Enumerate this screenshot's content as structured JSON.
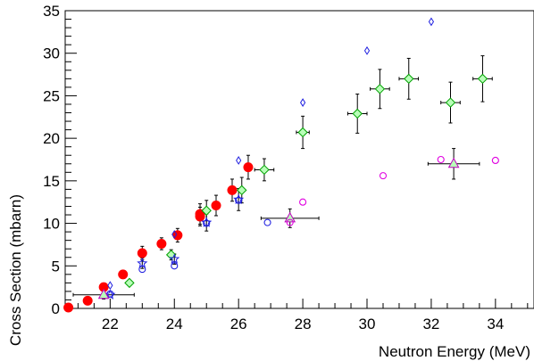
{
  "chart_data": {
    "type": "scatter",
    "xlabel": "Neutron Energy (MeV)",
    "ylabel": "Cross Section (mbarn)",
    "xlim": [
      20.6,
      35.2
    ],
    "ylim": [
      0,
      35
    ],
    "xticks": [
      "22",
      "24",
      "26",
      "28",
      "30",
      "32",
      "34"
    ],
    "yticks": [
      "0",
      "5",
      "10",
      "15",
      "20",
      "25",
      "30",
      "35"
    ],
    "grid": false,
    "series": [
      {
        "marker": "filled-circle",
        "color": "#ff0000",
        "points": [
          {
            "x": 20.7,
            "y": 0.1
          },
          {
            "x": 21.3,
            "y": 0.9
          },
          {
            "x": 21.8,
            "y": 2.5,
            "yerr": 0.4
          },
          {
            "x": 22.4,
            "y": 4.0
          },
          {
            "x": 23.0,
            "y": 6.5,
            "yerr": 0.8
          },
          {
            "x": 23.6,
            "y": 7.6,
            "yerr": 0.7
          },
          {
            "x": 24.1,
            "y": 8.6,
            "yerr": 0.8
          },
          {
            "x": 24.8,
            "y": 10.8,
            "yerr": 1.1
          },
          {
            "x": 24.8,
            "y": 11.1,
            "yerr": 1.2
          },
          {
            "x": 25.3,
            "y": 12.1,
            "yerr": 1.2
          },
          {
            "x": 25.8,
            "y": 13.9,
            "yerr": 1.3
          },
          {
            "x": 26.3,
            "y": 16.6,
            "yerr": 1.4
          }
        ]
      },
      {
        "marker": "open-diamond",
        "color": "#00a000",
        "fill": "#b8ffb8",
        "points": [
          {
            "x": 22.6,
            "y": 3.0
          },
          {
            "x": 23.9,
            "y": 6.3,
            "yerr": 0.6
          },
          {
            "x": 25.0,
            "y": 11.5,
            "yerr": 1.2
          },
          {
            "x": 26.1,
            "y": 13.9,
            "yerr": 1.5
          },
          {
            "x": 26.8,
            "y": 16.3,
            "yerr": 1.3,
            "xerr": 0.3
          },
          {
            "x": 28.0,
            "y": 20.7,
            "yerr": 1.9,
            "xerr": 0.2
          },
          {
            "x": 29.7,
            "y": 22.9,
            "yerr": 2.3,
            "xerr": 0.3
          },
          {
            "x": 30.4,
            "y": 25.8,
            "yerr": 2.3,
            "xerr": 0.3
          },
          {
            "x": 31.3,
            "y": 27.0,
            "yerr": 2.4,
            "xerr": 0.3
          },
          {
            "x": 32.6,
            "y": 24.2,
            "yerr": 2.4,
            "xerr": 0.3
          },
          {
            "x": 33.6,
            "y": 27.0,
            "yerr": 2.7,
            "xerr": 0.3
          }
        ]
      },
      {
        "marker": "open-circle",
        "color": "#2020e0",
        "points": [
          {
            "x": 22.0,
            "y": 1.7
          },
          {
            "x": 23.0,
            "y": 4.6
          },
          {
            "x": 24.0,
            "y": 5.0
          },
          {
            "x": 25.0,
            "y": 10.0
          },
          {
            "x": 26.0,
            "y": 12.7
          },
          {
            "x": 26.9,
            "y": 10.1
          }
        ]
      },
      {
        "marker": "open-star",
        "color": "#2020e0",
        "points": [
          {
            "x": 22.0,
            "y": 1.6
          },
          {
            "x": 23.0,
            "y": 5.3,
            "yerr": 0.6
          },
          {
            "x": 24.0,
            "y": 5.8,
            "yerr": 0.6
          },
          {
            "x": 25.0,
            "y": 10.1,
            "yerr": 1.0
          },
          {
            "x": 26.0,
            "y": 12.8,
            "yerr": 1.3
          }
        ]
      },
      {
        "marker": "open-diamond-small",
        "color": "#2020e0",
        "points": [
          {
            "x": 22.0,
            "y": 2.7
          },
          {
            "x": 24.0,
            "y": 8.7
          },
          {
            "x": 26.0,
            "y": 17.4
          },
          {
            "x": 28.0,
            "y": 24.2
          },
          {
            "x": 30.0,
            "y": 30.3
          },
          {
            "x": 32.0,
            "y": 33.7
          }
        ]
      },
      {
        "marker": "open-triangle",
        "color": "#c000c0",
        "fill": "#b8ffb8",
        "points": [
          {
            "x": 21.8,
            "y": 1.6,
            "xerr": 0.95,
            "yerr": 0.5
          },
          {
            "x": 27.6,
            "y": 10.6,
            "xerr": 0.9,
            "yerr": 1.1
          },
          {
            "x": 32.7,
            "y": 17.0,
            "xerr": 0.8,
            "yerr": 1.8
          }
        ]
      },
      {
        "marker": "open-circle",
        "color": "#e000e0",
        "points": [
          {
            "x": 27.6,
            "y": 10.1
          },
          {
            "x": 28.0,
            "y": 12.5
          },
          {
            "x": 30.5,
            "y": 15.6
          },
          {
            "x": 32.3,
            "y": 17.5
          },
          {
            "x": 34.0,
            "y": 17.4
          }
        ]
      }
    ]
  }
}
